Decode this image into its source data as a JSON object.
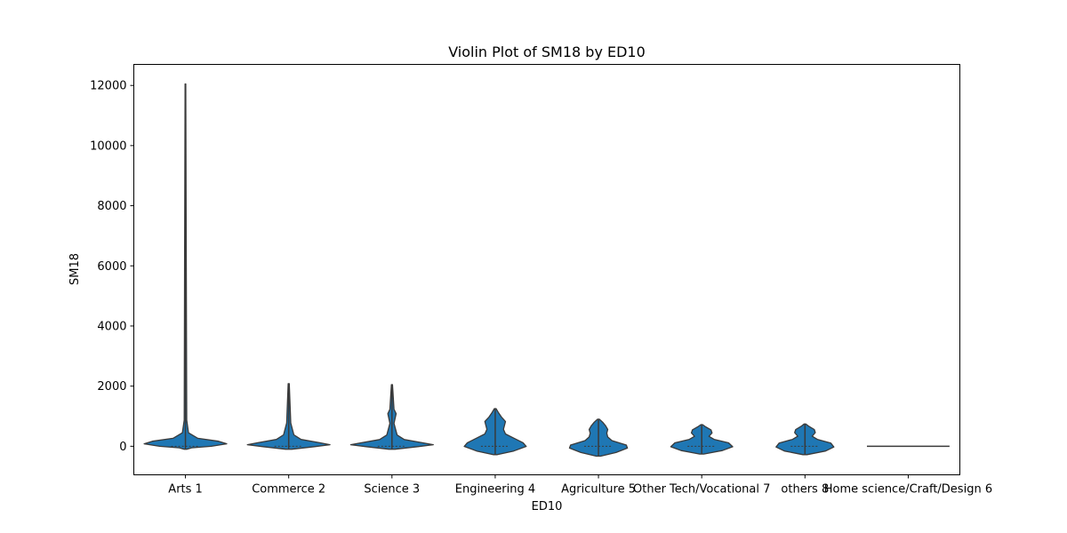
{
  "chart_data": {
    "type": "violin",
    "title": "Violin Plot of SM18 by ED10",
    "xlabel": "ED10",
    "ylabel": "SM18",
    "ylim": [
      -950,
      12700
    ],
    "yticks": [
      0,
      2000,
      4000,
      6000,
      8000,
      10000,
      12000
    ],
    "grid": false,
    "colors": {
      "fill": "#1f77b4",
      "edge": "#3a3a3a"
    },
    "categories": [
      "Arts 1",
      "Commerce 2",
      "Science 3",
      "Engineering 4",
      "Agriculture 5",
      "Other Tech/Vocational 7",
      "others 8",
      "Home science/Craft/Design 6"
    ],
    "violins": [
      {
        "category": "Arts 1",
        "min": -100,
        "max": 12050,
        "median": 0
      },
      {
        "category": "Commerce 2",
        "min": -100,
        "max": 2080,
        "median": 0
      },
      {
        "category": "Science 3",
        "min": -100,
        "max": 2050,
        "median": 0
      },
      {
        "category": "Engineering 4",
        "min": -280,
        "max": 1250,
        "median": 0
      },
      {
        "category": "Agriculture 5",
        "min": -330,
        "max": 900,
        "median": 0
      },
      {
        "category": "Other Tech/Vocational 7",
        "min": -260,
        "max": 720,
        "median": 0
      },
      {
        "category": "others 8",
        "min": -280,
        "max": 740,
        "median": 0
      },
      {
        "category": "Home science/Craft/Design 6",
        "min": 0,
        "max": 0,
        "median": 0
      }
    ]
  }
}
